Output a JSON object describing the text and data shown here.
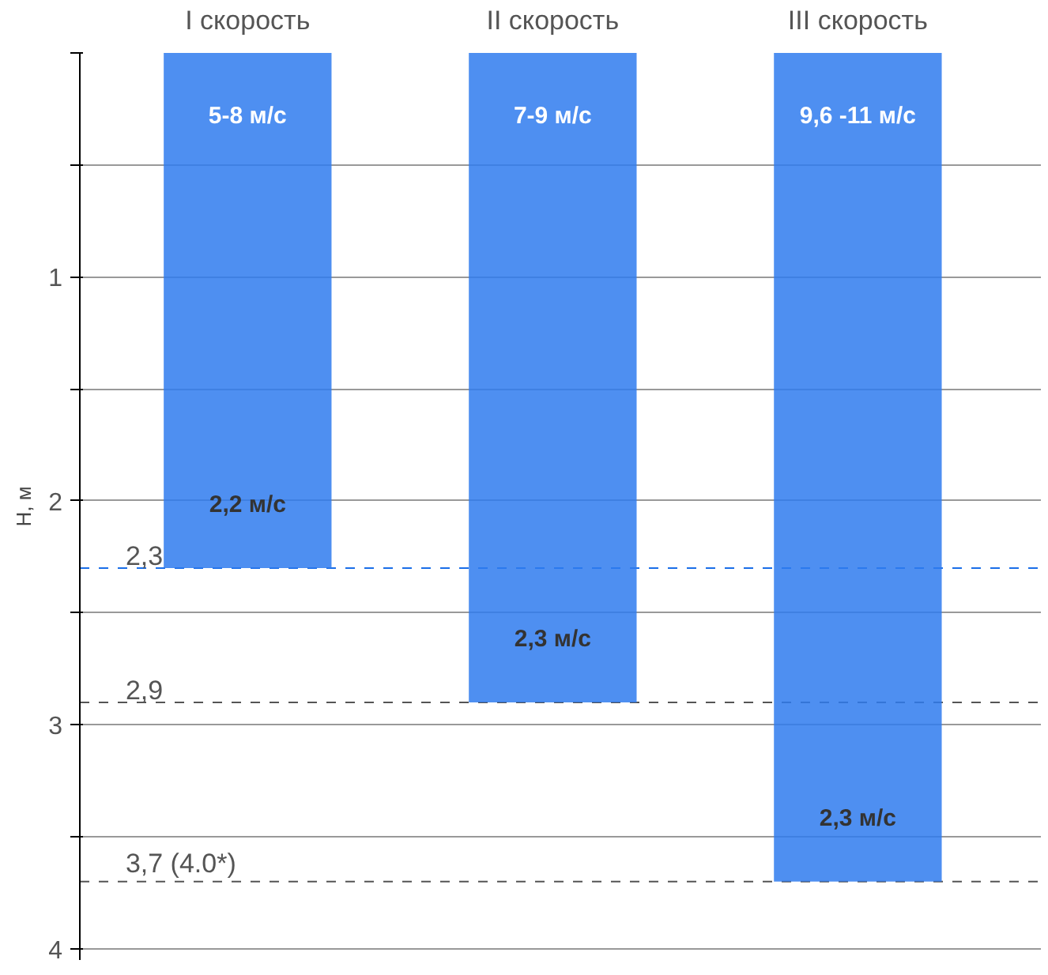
{
  "chart_data": {
    "type": "bar",
    "ylabel": "H, м",
    "categories": [
      "I скорость",
      "II скорость",
      "III скорость"
    ],
    "values": [
      2.3,
      2.9,
      3.7
    ],
    "color": "#2f7bef",
    "ylim": [
      4.05,
      0
    ],
    "yticks": [
      {
        "value": 0,
        "label": null
      },
      {
        "value": 0.5,
        "label": null
      },
      1,
      {
        "value": 1.5,
        "label": null
      },
      2,
      {
        "value": 2.5,
        "label": null
      },
      3,
      {
        "value": 3.5,
        "label": null
      },
      4
    ],
    "grid": "y",
    "ref_lines": [
      {
        "axis": "y",
        "value": 2.3,
        "label": "2,3",
        "color": "#1a6ee8",
        "line_style": "dashed"
      },
      {
        "axis": "y",
        "value": 2.9,
        "label": "2,9",
        "color": "#555555",
        "line_style": "dashed"
      },
      {
        "axis": "y",
        "value": 3.7,
        "label": "3,7 (4.0*)",
        "color": "#555555",
        "line_style": "dashed"
      }
    ],
    "annotations": [
      "5-8 м/с",
      "7-9 м/с",
      "9,6 -11 м/с",
      "2,2 м/с",
      "2,3 м/с",
      "2,3 м/с"
    ]
  }
}
